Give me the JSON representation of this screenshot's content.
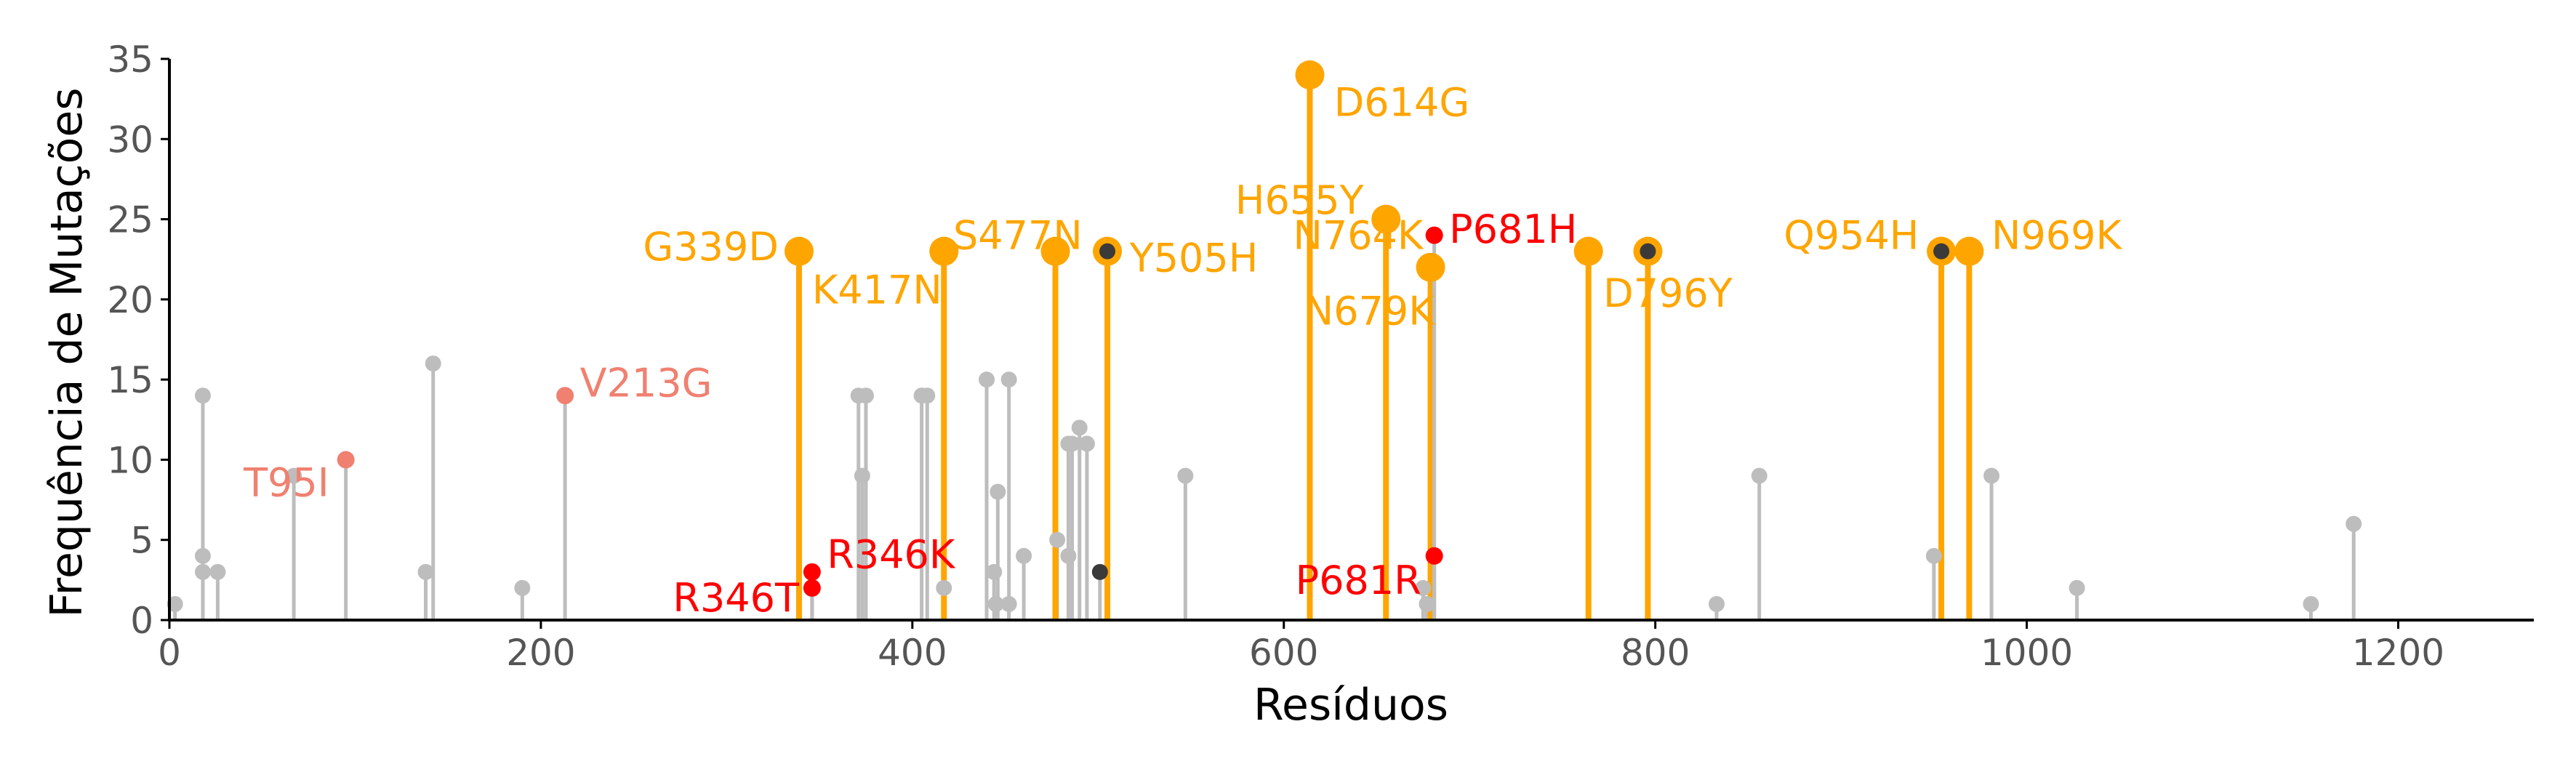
{
  "chart_data": {
    "type": "lollipop",
    "xlabel": "Resíduos",
    "ylabel": "Frequência de Mutações",
    "xlim": [
      0,
      1273
    ],
    "ylim": [
      0,
      35
    ],
    "xticks": [
      0,
      200,
      400,
      600,
      800,
      1000,
      1200
    ],
    "yticks": [
      0,
      5,
      10,
      15,
      20,
      25,
      30,
      35
    ],
    "colors": {
      "background": "#bdbdbd",
      "frequent": "#ffa500",
      "salmon": "#f08070",
      "red": "#ff0000",
      "dark": "#3a3a3a",
      "axis": "#000000"
    },
    "background_points": [
      {
        "x": 3,
        "y": 1
      },
      {
        "x": 18,
        "y": 14
      },
      {
        "x": 18,
        "y": 4
      },
      {
        "x": 18,
        "y": 3
      },
      {
        "x": 26,
        "y": 3
      },
      {
        "x": 67,
        "y": 9
      },
      {
        "x": 138,
        "y": 3
      },
      {
        "x": 142,
        "y": 16
      },
      {
        "x": 190,
        "y": 2
      },
      {
        "x": 371,
        "y": 14
      },
      {
        "x": 373,
        "y": 9
      },
      {
        "x": 375,
        "y": 14
      },
      {
        "x": 405,
        "y": 14
      },
      {
        "x": 408,
        "y": 14
      },
      {
        "x": 417,
        "y": 2
      },
      {
        "x": 440,
        "y": 15
      },
      {
        "x": 444,
        "y": 3
      },
      {
        "x": 445,
        "y": 1
      },
      {
        "x": 446,
        "y": 8
      },
      {
        "x": 452,
        "y": 15
      },
      {
        "x": 452,
        "y": 1
      },
      {
        "x": 460,
        "y": 4
      },
      {
        "x": 478,
        "y": 5
      },
      {
        "x": 484,
        "y": 4
      },
      {
        "x": 484,
        "y": 11
      },
      {
        "x": 486,
        "y": 11
      },
      {
        "x": 490,
        "y": 12
      },
      {
        "x": 494,
        "y": 11
      },
      {
        "x": 547,
        "y": 9
      },
      {
        "x": 675,
        "y": 2
      },
      {
        "x": 677,
        "y": 1
      },
      {
        "x": 833,
        "y": 1
      },
      {
        "x": 856,
        "y": 9
      },
      {
        "x": 950,
        "y": 4
      },
      {
        "x": 981,
        "y": 9
      },
      {
        "x": 1027,
        "y": 2
      },
      {
        "x": 1153,
        "y": 1
      },
      {
        "x": 1176,
        "y": 6
      }
    ],
    "frequent_points": [
      {
        "x": 339,
        "y": 23,
        "label": "G339D",
        "lx": -11,
        "ly": 23.3,
        "anchor": "end"
      },
      {
        "x": 417,
        "y": 23,
        "label": "K417N",
        "lx": -71,
        "ly": 20.6,
        "anchor": "start"
      },
      {
        "x": 477,
        "y": 23,
        "label": "S477N",
        "lx": -55,
        "ly": 24.0,
        "anchor": "start"
      },
      {
        "x": 505,
        "y": 23,
        "label": "Y505H",
        "lx": 12,
        "ly": 22.6,
        "anchor": "start"
      },
      {
        "x": 614,
        "y": 34,
        "label": "D614G",
        "lx": 13,
        "ly": 32.3,
        "anchor": "start"
      },
      {
        "x": 655,
        "y": 25,
        "label": "H655Y",
        "lx": -12,
        "ly": 26.2,
        "anchor": "end"
      },
      {
        "x": 679,
        "y": 22,
        "label": "N679K",
        "lx": 2,
        "ly": 19.3,
        "anchor": "end"
      },
      {
        "x": 764,
        "y": 23,
        "label": "N764K",
        "lx": -89,
        "ly": 24.0,
        "anchor": "end"
      },
      {
        "x": 796,
        "y": 23,
        "label": "D796Y",
        "lx": -24,
        "ly": 20.4,
        "anchor": "start"
      },
      {
        "x": 954,
        "y": 23,
        "label": "Q954H",
        "lx": -12,
        "ly": 24.0,
        "anchor": "end"
      },
      {
        "x": 969,
        "y": 23,
        "label": "N969K",
        "lx": 12,
        "ly": 24.0,
        "anchor": "start"
      }
    ],
    "frequent_dark_markers": [
      {
        "x": 505,
        "y": 23
      },
      {
        "x": 796,
        "y": 23
      },
      {
        "x": 954,
        "y": 23
      }
    ],
    "highlight_points": [
      {
        "x": 95,
        "y": 10,
        "label": "T95I",
        "color": "salmon",
        "lx": -9,
        "ly": 8.6,
        "anchor": "end"
      },
      {
        "x": 213,
        "y": 14,
        "label": "V213G",
        "color": "salmon",
        "lx": 8,
        "ly": 14.8,
        "anchor": "start"
      },
      {
        "x": 346,
        "y": 2,
        "label": "R346T",
        "color": "red",
        "lx": -7,
        "ly": 1.4,
        "anchor": "end"
      },
      {
        "x": 346,
        "y": 3,
        "label": "R346K",
        "color": "red",
        "lx": 8,
        "ly": 4.1,
        "anchor": "start"
      },
      {
        "x": 681,
        "y": 4,
        "label": "P681R",
        "color": "red",
        "lx": -7,
        "ly": 2.5,
        "anchor": "end"
      },
      {
        "x": 681,
        "y": 24,
        "label": "P681H",
        "color": "red",
        "lx": 8,
        "ly": 24.4,
        "anchor": "start"
      }
    ],
    "dark_points": [
      {
        "x": 501,
        "y": 3
      }
    ]
  }
}
